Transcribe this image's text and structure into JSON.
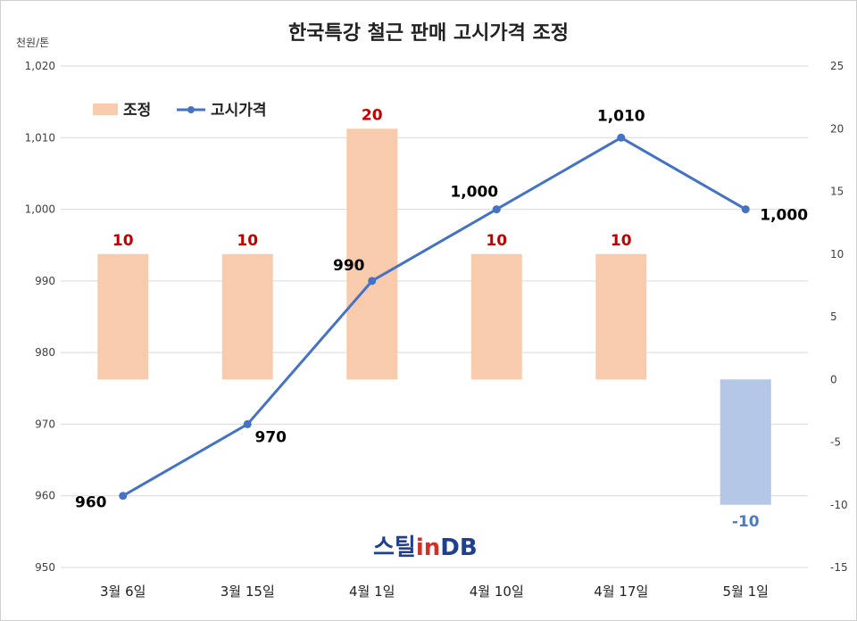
{
  "chart_data": {
    "type": "bar",
    "title": "한국특강 철근 판매 고시가격 조정",
    "unit_label": "천원/톤",
    "categories": [
      "3월 6일",
      "3월 15일",
      "4월 1일",
      "4월 10일",
      "4월 17일",
      "5월 1일"
    ],
    "series": [
      {
        "name": "조정",
        "type": "bar",
        "axis": "right",
        "values": [
          10,
          10,
          20,
          10,
          10,
          -10
        ],
        "labels": [
          "10",
          "10",
          "20",
          "10",
          "10",
          "-10"
        ],
        "color": "#f8cbad",
        "negative_color": "#b4c7e7"
      },
      {
        "name": "고시가격",
        "type": "line",
        "axis": "left",
        "values": [
          960,
          970,
          990,
          1000,
          1010,
          1000
        ],
        "labels": [
          "960",
          "970",
          "990",
          "1,000",
          "1,010",
          "1,000"
        ],
        "color": "#4472c4"
      }
    ],
    "y_left": {
      "min": 950,
      "max": 1020,
      "ticks": [
        "950",
        "960",
        "970",
        "980",
        "990",
        "1,000",
        "1,010",
        "1,020"
      ]
    },
    "y_right": {
      "min": -15,
      "max": 25,
      "ticks": [
        "-15",
        "-10",
        "-5",
        "0",
        "5",
        "10",
        "15",
        "20",
        "25"
      ]
    },
    "grid": true,
    "legend": "top-left"
  },
  "watermark": {
    "text_main": "스틸",
    "text_in": "in",
    "text_db": "DB"
  }
}
